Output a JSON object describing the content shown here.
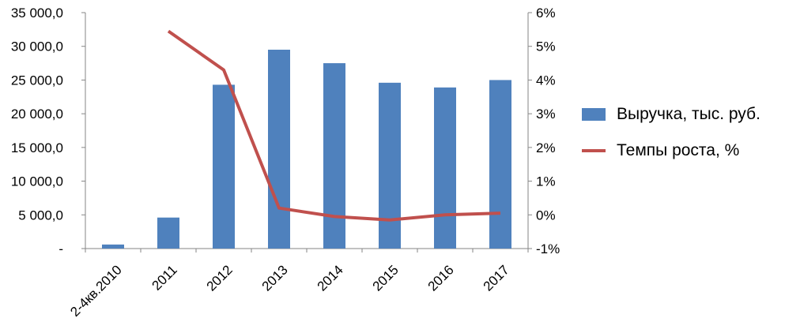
{
  "chart_data": {
    "type": "bar",
    "categories": [
      "2-4кв.2010",
      "2011",
      "2012",
      "2013",
      "2014",
      "2015",
      "2016",
      "2017"
    ],
    "series": [
      {
        "name": "Выручка, тыс. руб.",
        "kind": "bar",
        "axis": "left",
        "color": "#4F81BD",
        "values": [
          600,
          4600,
          24300,
          29500,
          27500,
          24600,
          23900,
          25000
        ]
      },
      {
        "name": "Темпы роста, %",
        "kind": "line",
        "axis": "right",
        "color": "#C0504D",
        "values": [
          null,
          5.45,
          4.3,
          0.2,
          -0.05,
          -0.15,
          0.0,
          0.05
        ]
      }
    ],
    "y_left": {
      "ylim": [
        0,
        35000
      ],
      "ticks": [
        0,
        5000,
        10000,
        15000,
        20000,
        25000,
        30000,
        35000
      ],
      "tick_labels": [
        "-",
        "5 000,0",
        "10 000,0",
        "15 000,0",
        "20 000,0",
        "25 000,0",
        "30 000,0",
        "35 000,0"
      ]
    },
    "y_right": {
      "ylim": [
        -1,
        6
      ],
      "ticks": [
        -1,
        0,
        1,
        2,
        3,
        4,
        5,
        6
      ],
      "tick_labels": [
        "-1%",
        "0%",
        "1%",
        "2%",
        "3%",
        "4%",
        "5%",
        "6%"
      ]
    },
    "grid": false,
    "legend_position": "right",
    "title": "",
    "xlabel": "",
    "ylabel": ""
  }
}
